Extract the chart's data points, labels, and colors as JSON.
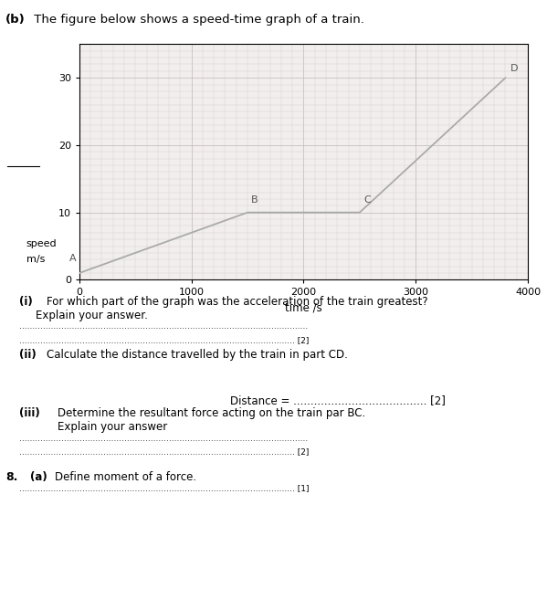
{
  "title_bold": "(b)",
  "title_rest": " The figure below shows a speed-time graph of a train.",
  "graph_points": {
    "A": [
      0,
      1
    ],
    "B": [
      1500,
      10
    ],
    "C": [
      2500,
      10
    ],
    "D": [
      3800,
      30
    ]
  },
  "point_labels": [
    "A",
    "B",
    "C",
    "D"
  ],
  "xlabel": "time /s",
  "xlim": [
    0,
    4000
  ],
  "ylim": [
    0,
    35
  ],
  "xticks": [
    0,
    1000,
    2000,
    3000,
    4000
  ],
  "yticks": [
    0,
    10,
    20,
    30
  ],
  "line_color": "#aaaaaa",
  "grid_color_minor": "#d8d0d0",
  "grid_color_major": "#c8c0c0",
  "background_color": "#f2eeee",
  "point_label_color": "#555555",
  "underline_speed": true
}
